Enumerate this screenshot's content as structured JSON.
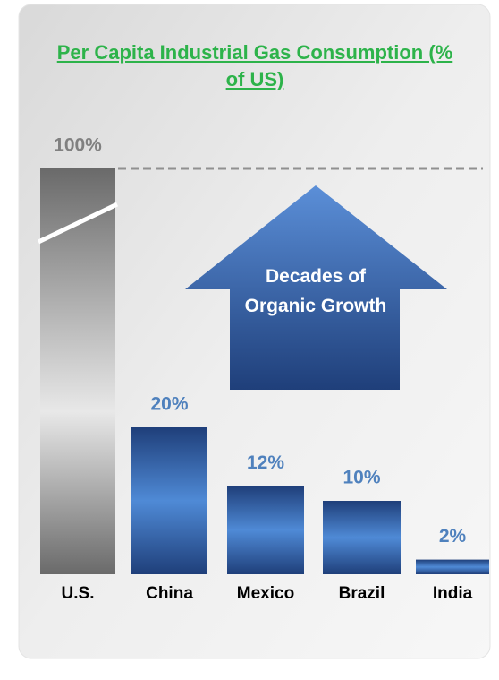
{
  "chart_data": {
    "type": "bar",
    "title": "Per Capita Industrial Gas Consumption (% of US)",
    "categories": [
      "U.S.",
      "China",
      "Mexico",
      "Brazil",
      "India"
    ],
    "values": [
      100,
      20,
      12,
      10,
      2
    ],
    "value_labels": [
      "100%",
      "20%",
      "12%",
      "10%",
      "2%"
    ],
    "colors": [
      "#808080",
      "#4f81bd",
      "#4f81bd",
      "#4f81bd",
      "#4f81bd"
    ],
    "annotation": "Decades of Organic Growth"
  }
}
